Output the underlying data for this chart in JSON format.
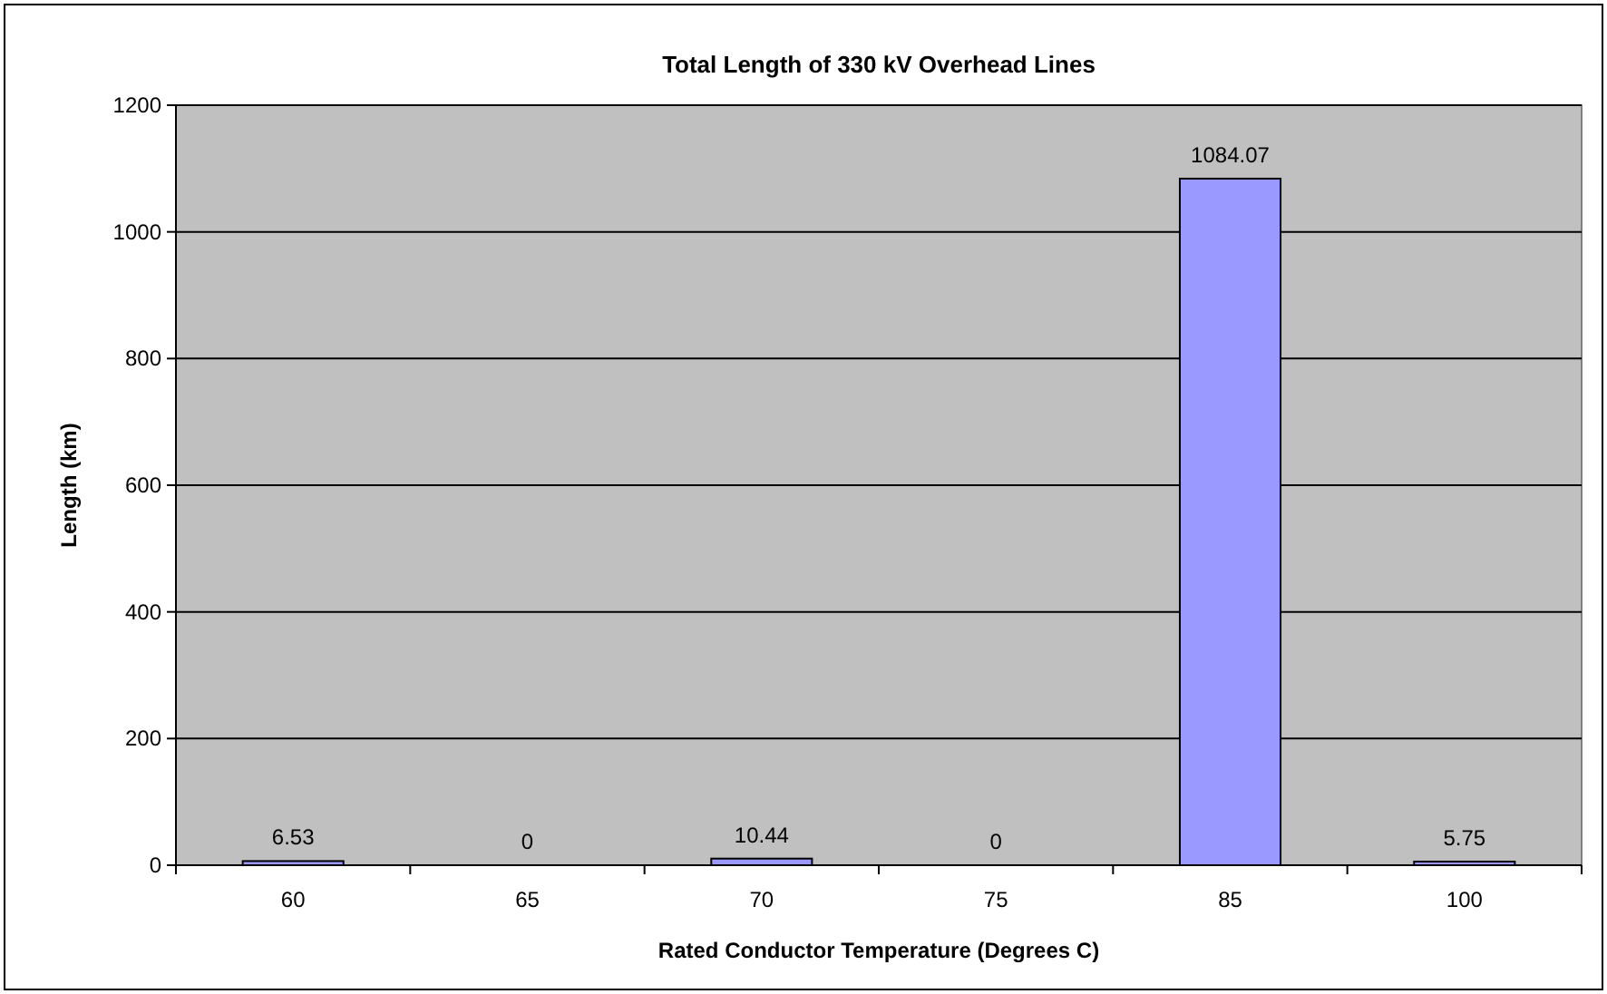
{
  "chart_data": {
    "type": "bar",
    "title": "Total Length of 330 kV Overhead Lines",
    "xlabel": "Rated Conductor Temperature (Degrees C)",
    "ylabel": "Length (km)",
    "categories": [
      "60",
      "65",
      "70",
      "75",
      "85",
      "100"
    ],
    "values": [
      6.53,
      0,
      10.44,
      0,
      1084.07,
      5.75
    ],
    "color": "#9999ff",
    "ylim": [
      0,
      1200
    ],
    "yticks": [
      0,
      200,
      400,
      600,
      800,
      1000,
      1200
    ],
    "grid": "y",
    "data_labels": true
  }
}
